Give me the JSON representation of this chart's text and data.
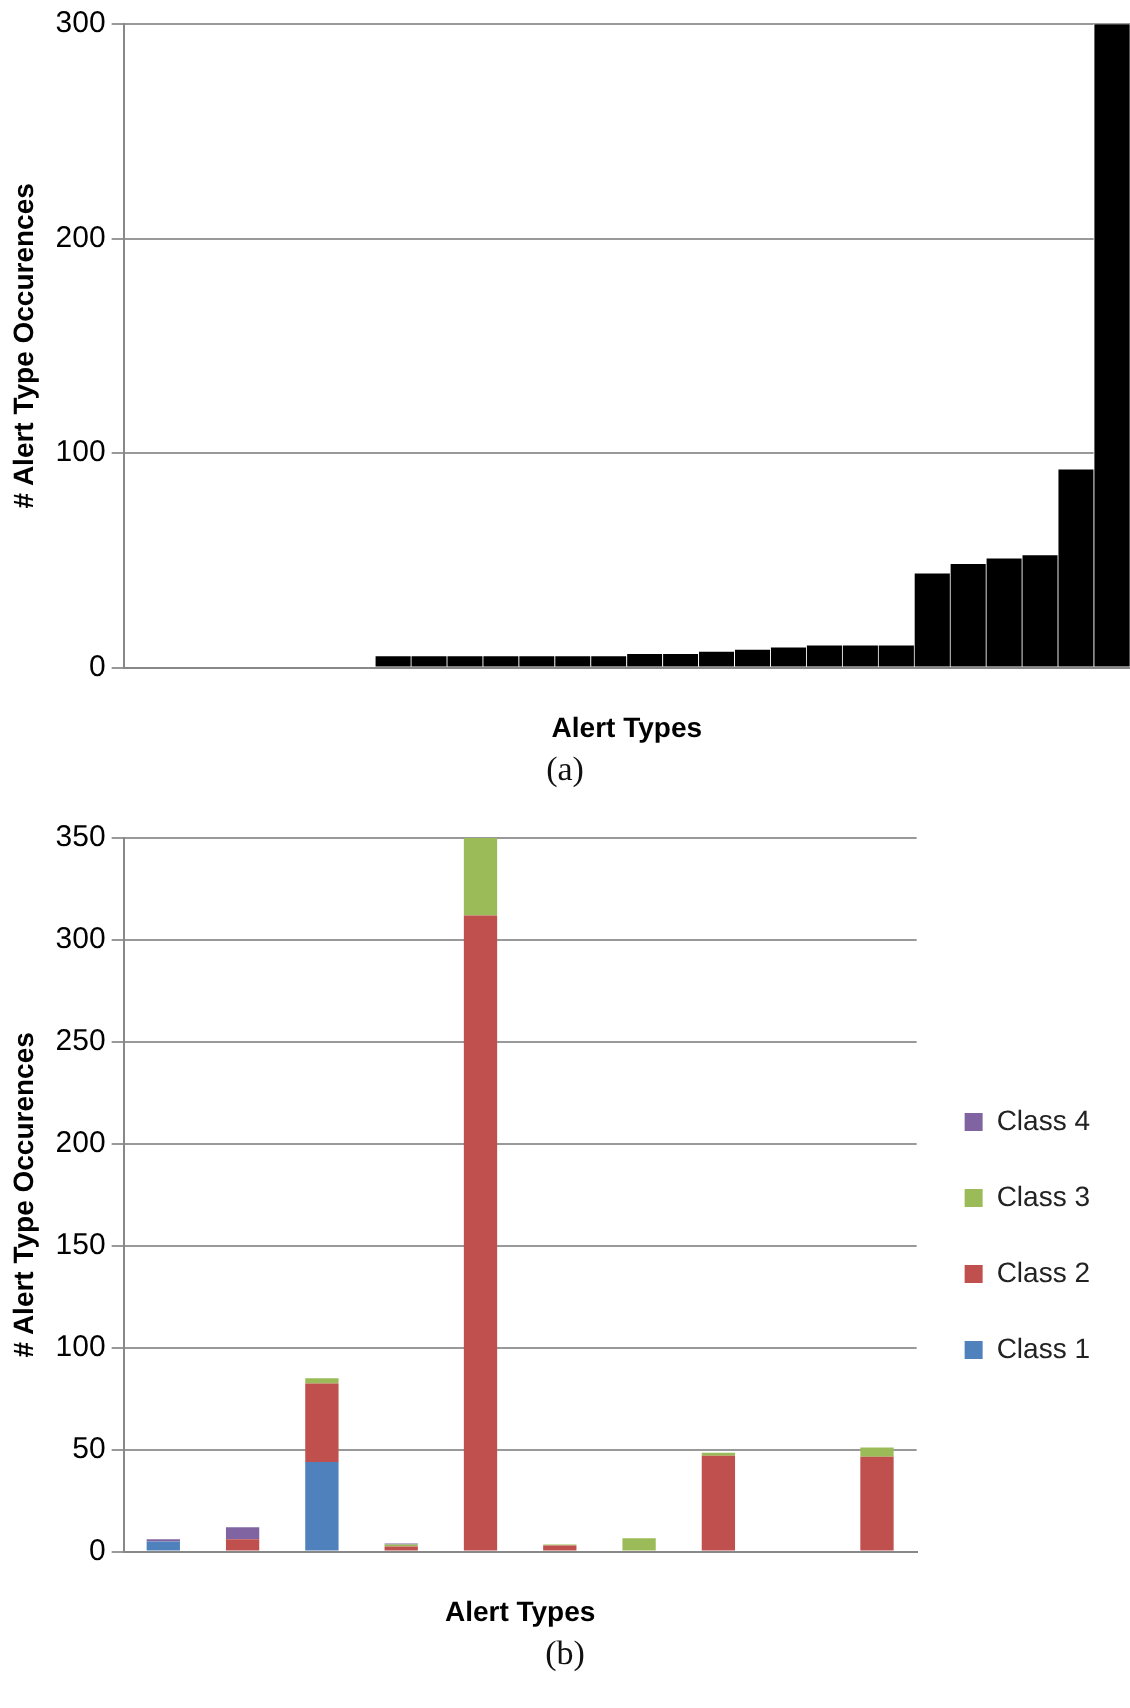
{
  "chart_data": [
    {
      "type": "bar",
      "xlabel": "Alert Types",
      "ylabel": "# Alert Type Occurences",
      "categories": [
        null,
        null,
        null,
        null,
        null,
        null,
        null,
        null,
        null,
        null,
        null,
        null,
        null,
        null,
        null,
        null,
        null,
        null,
        null,
        null,
        null,
        null,
        null,
        null,
        null,
        null,
        null,
        null
      ],
      "values": [
        0,
        0,
        0,
        0,
        0,
        0,
        0,
        5.5,
        5.5,
        5.5,
        5.5,
        5.5,
        5.5,
        5.5,
        6.5,
        6.5,
        7.5,
        8.5,
        9.5,
        10.5,
        10.5,
        10.5,
        44,
        48.5,
        51,
        52.5,
        92.5,
        300
      ],
      "color": "#000000",
      "ylim": [
        0,
        300
      ],
      "yticks": [
        0,
        100,
        200,
        300
      ],
      "grid": "y",
      "legend": false,
      "annotations": [
        "(a)"
      ]
    },
    {
      "type": "bar",
      "stacked": true,
      "xlabel": "Alert Types",
      "ylabel": "# Alert Type Occurences",
      "categories": [
        null,
        null,
        null,
        null,
        null,
        null,
        null,
        null,
        null,
        null
      ],
      "series": [
        {
          "name": "Class 1",
          "color": "#4f81bd",
          "values": [
            5,
            0,
            44,
            0,
            0,
            0,
            0,
            0,
            0,
            0
          ]
        },
        {
          "name": "Class 2",
          "color": "#c0504d",
          "values": [
            0,
            6,
            38.5,
            2.5,
            312,
            3,
            0,
            47,
            0,
            46.5
          ]
        },
        {
          "name": "Class 3",
          "color": "#9bbb59",
          "values": [
            0,
            0,
            2.5,
            1,
            38,
            0.5,
            6.5,
            1.5,
            0,
            4.5
          ]
        },
        {
          "name": "Class 4",
          "color": "#8064a2",
          "values": [
            1,
            6,
            0,
            0.5,
            0,
            0,
            0,
            0,
            0,
            0
          ]
        }
      ],
      "ylim": [
        0,
        350
      ],
      "yticks": [
        0,
        50,
        100,
        150,
        200,
        250,
        300,
        350
      ],
      "grid": "y",
      "legend": "right",
      "annotations": [
        "(b)"
      ]
    }
  ]
}
